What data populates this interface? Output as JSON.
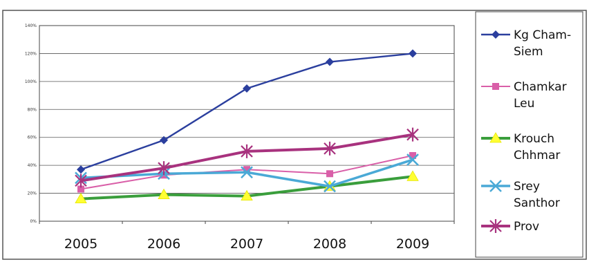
{
  "chart_data": {
    "type": "line",
    "x": [
      "2005",
      "2006",
      "2007",
      "2008",
      "2009"
    ],
    "yticks": [
      "0%",
      "20%",
      "40%",
      "60%",
      "80%",
      "100%",
      "120%",
      "140%"
    ],
    "ylim": [
      0,
      140
    ],
    "grid": true,
    "legend_position": "right",
    "series": [
      {
        "name": "Kg Cham-Siem",
        "legend_lines": [
          "Kg Cham-",
          "Siem"
        ],
        "color": "#2b3f9e",
        "marker": "diamond",
        "values": [
          37,
          58,
          95,
          114,
          120
        ]
      },
      {
        "name": "Chamkar Leu",
        "legend_lines": [
          "Chamkar",
          "Leu"
        ],
        "color": "#d95fa8",
        "marker": "square",
        "values": [
          23,
          33,
          37,
          34,
          47
        ]
      },
      {
        "name": "Krouch Chhmar",
        "legend_lines": [
          "Krouch",
          "Chhmar"
        ],
        "color": "#3a9e3c",
        "marker": "triangle",
        "values": [
          16,
          19,
          18,
          25,
          32
        ]
      },
      {
        "name": "Srey Santhor",
        "legend_lines": [
          "Srey",
          "Santhor"
        ],
        "color": "#4aa9d6",
        "marker": "x",
        "values": [
          31,
          34,
          35,
          25,
          44
        ]
      },
      {
        "name": "Prov",
        "legend_lines": [
          "Prov"
        ],
        "color": "#a8327e",
        "marker": "star",
        "values": [
          29,
          38,
          50,
          52,
          62
        ]
      }
    ]
  }
}
